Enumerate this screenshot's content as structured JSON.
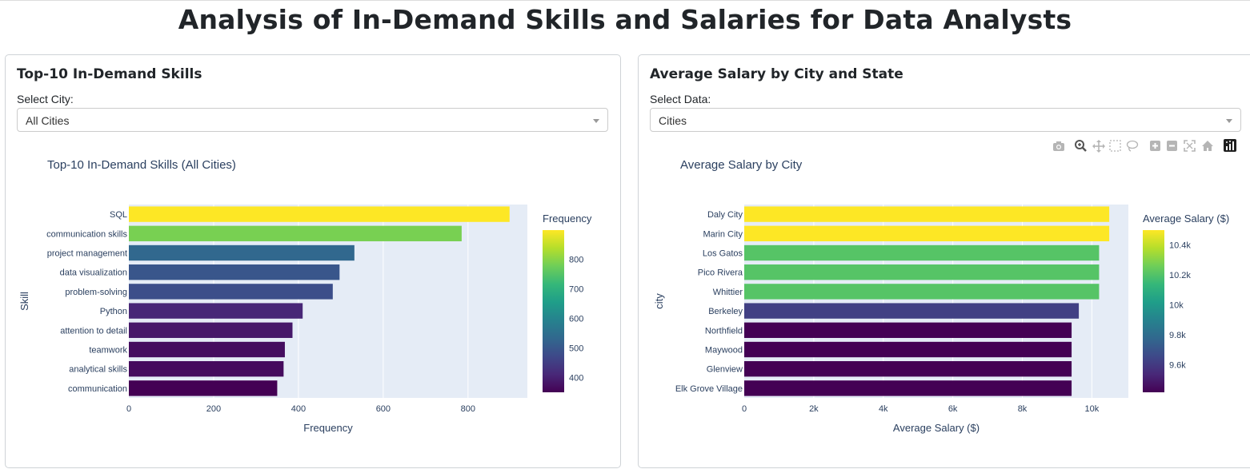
{
  "page": {
    "title": "Analysis of In-Demand Skills and Salaries for Data Analysts"
  },
  "left_panel": {
    "title": "Top-10 In-Demand Skills",
    "select_label": "Select City:",
    "dropdown_value": "All Cities"
  },
  "right_panel": {
    "title": "Average Salary by City and State",
    "select_label": "Select Data:",
    "dropdown_value": "Cities",
    "modebar_icons": [
      "camera-icon",
      "zoom-icon",
      "pan-icon",
      "box-select-icon",
      "lasso-icon",
      "zoom-in-icon",
      "zoom-out-icon",
      "autoscale-icon",
      "reset-axes-icon",
      "plotly-logo-icon"
    ]
  },
  "chart_data": [
    {
      "type": "bar",
      "orientation": "horizontal",
      "title": "Top-10 In-Demand Skills (All Cities)",
      "xlabel": "Frequency",
      "ylabel": "Skill",
      "categories": [
        "SQL",
        "communication skills",
        "project management",
        "data visualization",
        "problem-solving",
        "Python",
        "attention to detail",
        "teamwork",
        "analytical skills",
        "communication"
      ],
      "values": [
        898,
        785,
        532,
        497,
        481,
        410,
        386,
        368,
        365,
        350
      ],
      "xlim": [
        0,
        940
      ],
      "xticks": [
        0,
        200,
        400,
        600,
        800
      ],
      "xtick_labels": [
        "0",
        "200",
        "400",
        "600",
        "800"
      ],
      "colorbar": {
        "title": "Frequency",
        "ticks": [
          400,
          500,
          600,
          700,
          800
        ],
        "tick_labels": [
          "400",
          "500",
          "600",
          "700",
          "800"
        ],
        "range": [
          350,
          898
        ]
      },
      "colorscale": "Viridis",
      "grid": true
    },
    {
      "type": "bar",
      "orientation": "horizontal",
      "title": "Average Salary by City",
      "xlabel": "Average Salary ($)",
      "ylabel": "city",
      "categories": [
        "Daly City",
        "Marin City",
        "Los Gatos",
        "Pico Rivera",
        "Whittier",
        "Berkeley",
        "Northfield",
        "Maywood",
        "Glenview",
        "Elk Grove Village"
      ],
      "values": [
        10500,
        10500,
        10208,
        10208,
        10208,
        9625,
        9417,
        9417,
        9417,
        9417
      ],
      "xlim": [
        0,
        11050
      ],
      "xticks": [
        0,
        2000,
        4000,
        6000,
        8000,
        10000
      ],
      "xtick_labels": [
        "0",
        "2k",
        "4k",
        "6k",
        "8k",
        "10k"
      ],
      "colorbar": {
        "title": "Average Salary ($)",
        "ticks": [
          9600,
          9800,
          10000,
          10200,
          10400
        ],
        "tick_labels": [
          "9.6k",
          "9.8k",
          "10k",
          "10.2k",
          "10.4k"
        ],
        "range": [
          9417,
          10500
        ]
      },
      "colorscale": "Viridis",
      "grid": true
    }
  ]
}
